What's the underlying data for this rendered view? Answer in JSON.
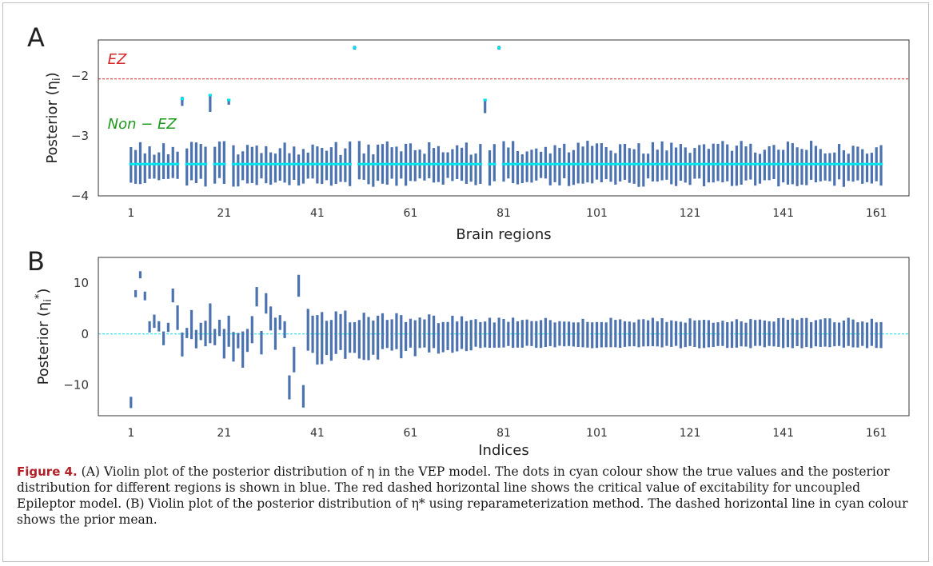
{
  "figure": {
    "caption_label": "Figure 4.",
    "caption_text": " (A) Violin plot of the posterior distribution of η in the VEP model. The dots in cyan colour show the true values and the posterior distribution for different regions is shown in blue. The red dashed horizontal line shows the critical value of excitability for uncoupled Epileptor model. (B) Violin plot of the posterior distribution of η* using reparameterization method. The dashed horizontal line in cyan colour shows the prior mean."
  },
  "colors": {
    "violin": "#4c72b0",
    "truth": "#00e5ee",
    "ez_line": "#d62728",
    "ez_text": "#d62728",
    "nonez_text": "#1e9a1e",
    "prior_line": "#00e5ee",
    "axis": "#333333"
  },
  "chart_data": [
    {
      "type": "violin",
      "panel_label": "A",
      "xlabel": "Brain regions",
      "ylabel": "Posterior (η_i)",
      "ylim": [
        -4,
        -1.4
      ],
      "xlim": [
        -6,
        168
      ],
      "xticks": [
        1,
        21,
        41,
        61,
        81,
        101,
        121,
        141,
        161
      ],
      "yticks": [
        -4,
        -3,
        -2
      ],
      "reference_line": {
        "y": -2.05,
        "style": "dashed"
      },
      "annotations": [
        {
          "text": "EZ",
          "x": -4,
          "y": -1.72
        },
        {
          "text": "Non − EZ",
          "x": -4,
          "y": -2.8
        }
      ],
      "n_regions": 162,
      "truth_default": -3.47,
      "missing_regions": [
        12,
        18,
        22,
        49,
        77,
        80
      ],
      "special_regions": [
        {
          "x": 12,
          "lo": -2.5,
          "hi": -2.35,
          "truth": -2.38
        },
        {
          "x": 18,
          "lo": -2.6,
          "hi": -2.3,
          "truth": -2.32
        },
        {
          "x": 22,
          "lo": -2.48,
          "hi": -2.38,
          "truth": -2.4
        },
        {
          "x": 49,
          "lo": -1.56,
          "hi": -1.5,
          "truth": -1.53
        },
        {
          "x": 77,
          "lo": -2.62,
          "hi": -2.38,
          "truth": -2.4
        },
        {
          "x": 80,
          "lo": -1.56,
          "hi": -1.5,
          "truth": -1.53
        }
      ],
      "regular_hi_range": [
        -3.32,
        -3.08
      ],
      "regular_lo_range": [
        -3.85,
        -3.7
      ]
    },
    {
      "type": "violin",
      "panel_label": "B",
      "xlabel": "Indices",
      "ylabel": "Posterior (η_i^*)",
      "ylim": [
        -16,
        15
      ],
      "xlim": [
        -6,
        168
      ],
      "xticks": [
        1,
        21,
        41,
        61,
        81,
        101,
        121,
        141,
        161
      ],
      "yticks": [
        -10,
        0,
        10
      ],
      "reference_line": {
        "y": 0,
        "style": "dashed"
      },
      "n_indices": 162,
      "intervals": [
        {
          "x": 1,
          "lo": -14.5,
          "hi": -12.3
        },
        {
          "x": 2,
          "lo": 7.2,
          "hi": 8.6
        },
        {
          "x": 3,
          "lo": 10.9,
          "hi": 12.3
        },
        {
          "x": 4,
          "lo": 6.6,
          "hi": 8.3
        },
        {
          "x": 5,
          "lo": 0.3,
          "hi": 2.5
        },
        {
          "x": 6,
          "lo": 1.2,
          "hi": 3.8
        },
        {
          "x": 7,
          "lo": 0.5,
          "hi": 2.5
        },
        {
          "x": 8,
          "lo": -2.2,
          "hi": 0.5
        },
        {
          "x": 9,
          "lo": 0.4,
          "hi": 2.2
        },
        {
          "x": 10,
          "lo": 6.2,
          "hi": 8.9
        },
        {
          "x": 11,
          "lo": 0.8,
          "hi": 5.6
        },
        {
          "x": 12,
          "lo": -4.4,
          "hi": 0.3
        },
        {
          "x": 13,
          "lo": -0.8,
          "hi": 1.2
        },
        {
          "x": 14,
          "lo": -1.0,
          "hi": 4.7
        },
        {
          "x": 15,
          "lo": -2.8,
          "hi": 0.8
        },
        {
          "x": 16,
          "lo": -1.2,
          "hi": 2.2
        },
        {
          "x": 17,
          "lo": -2.4,
          "hi": 2.6
        },
        {
          "x": 18,
          "lo": -1.8,
          "hi": 6.0
        },
        {
          "x": 19,
          "lo": -2.2,
          "hi": 1.0
        },
        {
          "x": 20,
          "lo": -0.4,
          "hi": 2.8
        },
        {
          "x": 21,
          "lo": -4.8,
          "hi": 1.0
        },
        {
          "x": 22,
          "lo": -2.5,
          "hi": 3.6
        },
        {
          "x": 23,
          "lo": -5.4,
          "hi": 0.4
        },
        {
          "x": 24,
          "lo": -2.8,
          "hi": 0.2
        },
        {
          "x": 25,
          "lo": -6.6,
          "hi": 0.5
        },
        {
          "x": 26,
          "lo": -3.5,
          "hi": 1.0
        },
        {
          "x": 27,
          "lo": -1.8,
          "hi": 3.5
        },
        {
          "x": 28,
          "lo": 5.4,
          "hi": 9.2
        },
        {
          "x": 29,
          "lo": -4.0,
          "hi": 0.6
        },
        {
          "x": 30,
          "lo": 4.0,
          "hi": 8.0
        },
        {
          "x": 31,
          "lo": 0.7,
          "hi": 5.4
        },
        {
          "x": 32,
          "lo": -3.1,
          "hi": 3.2
        },
        {
          "x": 33,
          "lo": 0.8,
          "hi": 3.7
        },
        {
          "x": 34,
          "lo": -0.8,
          "hi": 2.5
        },
        {
          "x": 35,
          "lo": -12.8,
          "hi": -8.1
        },
        {
          "x": 36,
          "lo": -7.5,
          "hi": -2.5
        },
        {
          "x": 37,
          "lo": 7.3,
          "hi": 11.6
        },
        {
          "x": 38,
          "lo": -14.4,
          "hi": -10.0
        }
      ],
      "regular_start": 39,
      "regular_hi_range": [
        2.0,
        5.0
      ],
      "regular_lo_range": [
        -6.5,
        -2.3
      ],
      "tail_hi_range": [
        2.2,
        3.2
      ],
      "tail_lo_range": [
        -2.8,
        -2.3
      ]
    }
  ]
}
